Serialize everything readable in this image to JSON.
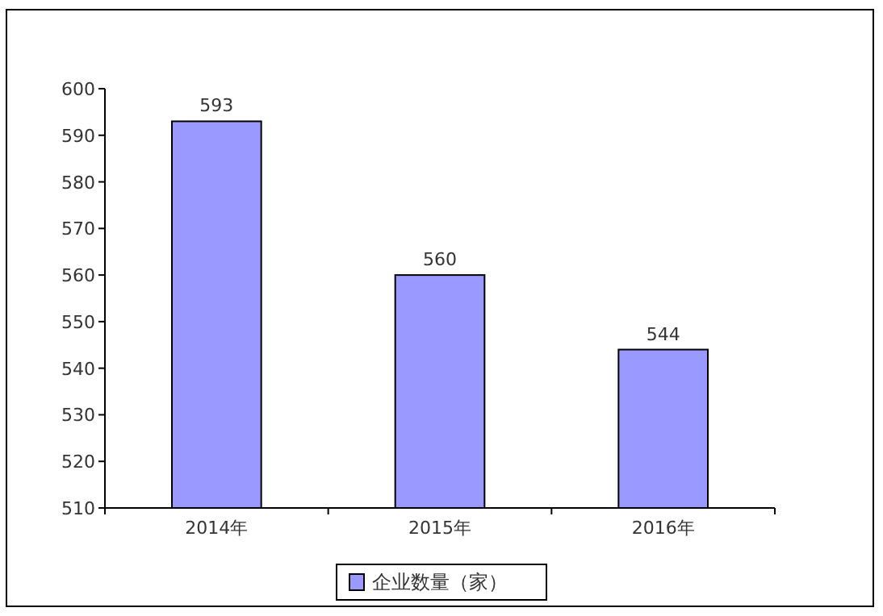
{
  "chart_data": {
    "type": "bar",
    "categories": [
      "2014年",
      "2015年",
      "2016年"
    ],
    "series": [
      {
        "name": "企业数量（家）",
        "color": "#9999ff",
        "values": [
          593,
          560,
          544
        ]
      }
    ],
    "ylim": [
      510,
      600
    ],
    "yticks": [
      510,
      520,
      530,
      540,
      550,
      560,
      570,
      580,
      590,
      600
    ],
    "data_labels": true,
    "legend": "bottom",
    "grid": false
  }
}
